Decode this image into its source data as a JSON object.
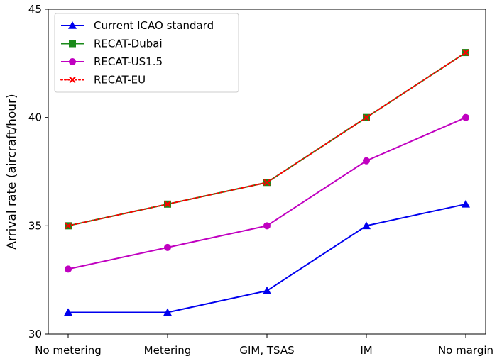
{
  "chart_data": {
    "type": "line",
    "categories": [
      "No metering",
      "Metering",
      "GIM, TSAS",
      "IM",
      "No margin"
    ],
    "ylabel": "Arrival rate (aircraft/hour)",
    "xlabel": "",
    "title": "",
    "ylim": [
      30,
      45
    ],
    "yticks": [
      30,
      35,
      40,
      45
    ],
    "grid": false,
    "legend_position": "top-left",
    "series": [
      {
        "name": "Current ICAO standard",
        "values": [
          31,
          31,
          32,
          35,
          36
        ],
        "color": "#0000ee",
        "marker": "triangle",
        "linestyle": "solid"
      },
      {
        "name": "RECAT-Dubai",
        "values": [
          35,
          36,
          37,
          40,
          43
        ],
        "color": "#1a8a1a",
        "marker": "square",
        "linestyle": "solid"
      },
      {
        "name": "RECAT-US1.5",
        "values": [
          33,
          34,
          35,
          38,
          40
        ],
        "color": "#c000c0",
        "marker": "circle",
        "linestyle": "solid"
      },
      {
        "name": "RECAT-EU",
        "values": [
          35,
          36,
          37,
          40,
          43
        ],
        "color": "#ff0000",
        "marker": "x",
        "linestyle": "dotted"
      }
    ]
  }
}
